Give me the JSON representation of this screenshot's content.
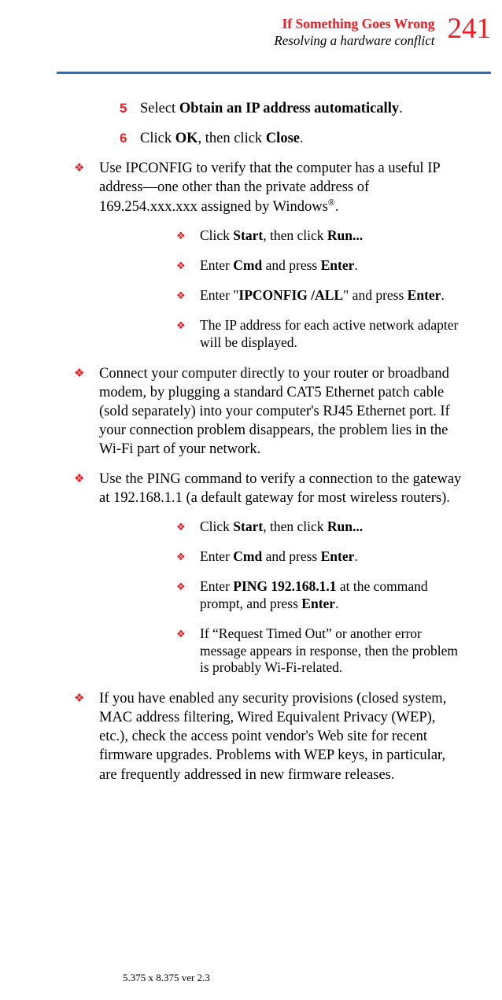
{
  "header": {
    "chapter": "If Something Goes Wrong",
    "section": "Resolving a hardware conflict",
    "page_number": "241",
    "colors": {
      "accent": "#ee1c23",
      "divider": "#2b71b8",
      "text": "#000000",
      "background": "#ffffff"
    }
  },
  "steps": [
    {
      "num": "5",
      "prefix": "Select ",
      "bold1": "Obtain an IP address automatically",
      "suffix": "."
    },
    {
      "num": "6",
      "prefix": "Click ",
      "bold1": "OK",
      "mid": ", then click ",
      "bold2": "Close",
      "suffix": "."
    }
  ],
  "bullets": [
    {
      "text_parts": [
        "Use IPCONFIG to verify that the computer has a useful IP address—one other than the private address of 169.254.xxx.xxx assigned by Windows",
        "®",
        "."
      ],
      "subs": [
        {
          "parts": [
            "Click ",
            "Start",
            ", then click ",
            "Run...",
            ""
          ]
        },
        {
          "parts": [
            "Enter ",
            "Cmd",
            " and press ",
            "Enter",
            "."
          ]
        },
        {
          "parts": [
            "Enter \"",
            "IPCONFIG /ALL",
            "\" and press ",
            "Enter",
            "."
          ]
        },
        {
          "parts": [
            "The IP address for each active network adapter will be displayed."
          ]
        }
      ]
    },
    {
      "text_parts": [
        "Connect your computer directly to your router or broadband modem, by plugging a standard CAT5 Ethernet patch cable (sold separately) into your computer's RJ45 Ethernet port. If your connection problem disappears, the problem lies in the Wi-Fi part of your network."
      ]
    },
    {
      "text_parts": [
        "Use the PING command to verify a connection to the gateway at 192.168.1.1 (a default gateway for most wireless routers)."
      ],
      "subs": [
        {
          "parts": [
            "Click ",
            "Start",
            ", then click ",
            "Run...",
            ""
          ]
        },
        {
          "parts": [
            "Enter ",
            "Cmd",
            " and press ",
            "Enter",
            "."
          ]
        },
        {
          "parts": [
            "Enter ",
            "PING 192.168.1.1",
            " at the command prompt, and press ",
            "Enter",
            "."
          ]
        },
        {
          "parts": [
            "If “Request Timed Out” or another error message appears in response, then the problem is probably Wi-Fi-related."
          ]
        }
      ]
    },
    {
      "text_parts": [
        "If you have enabled any security provisions (closed system, MAC address filtering, Wired Equivalent Privacy (WEP), etc.), check the access point vendor's Web site for recent firmware upgrades. Problems with WEP keys, in particular, are frequently addressed in new firmware releases."
      ]
    }
  ],
  "footer": "5.375 x 8.375 ver 2.3",
  "typography": {
    "body_fontsize": 18.5,
    "sub_fontsize": 17.5,
    "pagenum_fontsize": 37,
    "chapter_fontsize": 17.5,
    "footer_fontsize": 13
  }
}
